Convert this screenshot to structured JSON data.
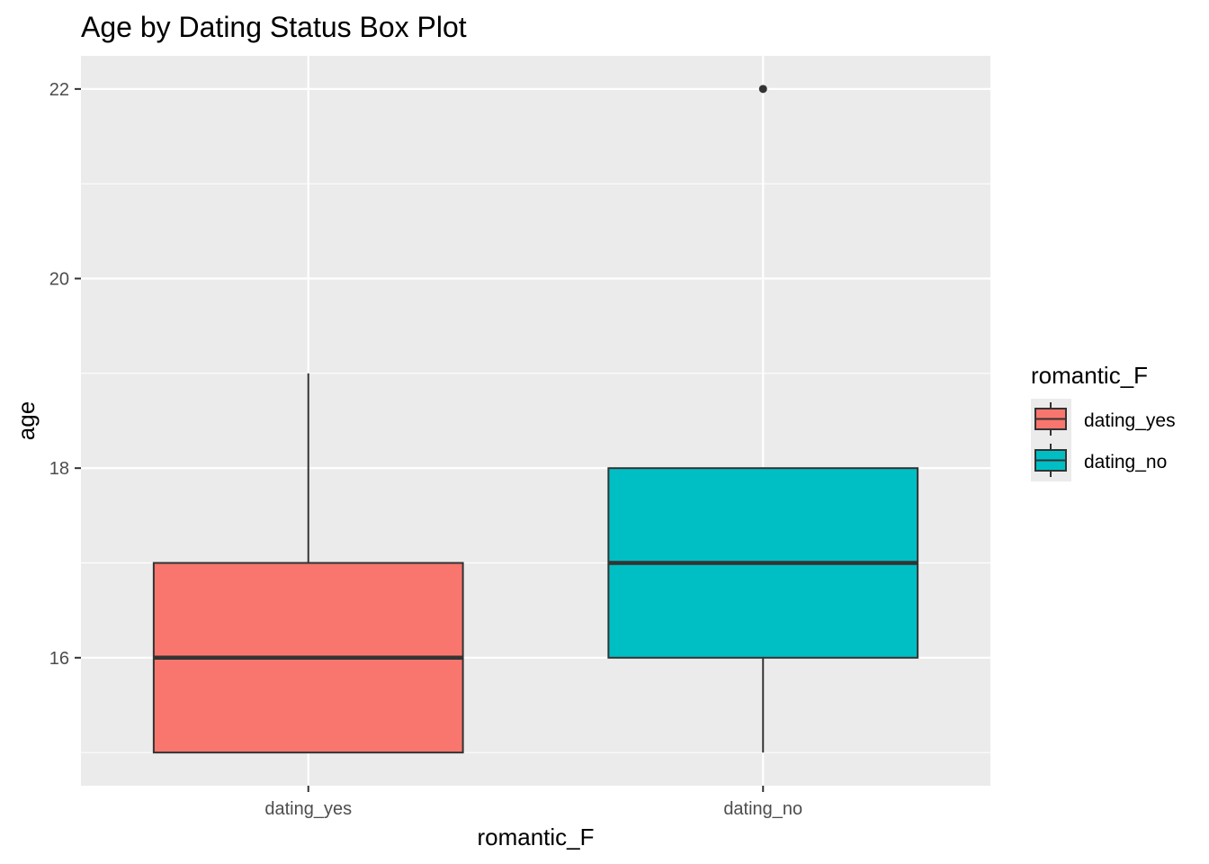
{
  "chart_data": {
    "type": "box",
    "title": "Age by Dating Status Box Plot",
    "xlabel": "romantic_F",
    "ylabel": "age",
    "categories": [
      "dating_yes",
      "dating_no"
    ],
    "ylim": [
      14.65,
      22.35
    ],
    "y_ticks": [
      16,
      18,
      20,
      22
    ],
    "y_tick_labels": [
      "16",
      "18",
      "20",
      "22"
    ],
    "grid": true,
    "legend": {
      "title": "romantic_F",
      "position": "right",
      "entries": [
        {
          "label": "dating_yes",
          "color": "#F8766D"
        },
        {
          "label": "dating_no",
          "color": "#00BFC4"
        }
      ]
    },
    "series": [
      {
        "category": "dating_yes",
        "color": "#F8766D",
        "min": 15,
        "q1": 15,
        "median": 16,
        "q3": 17,
        "max": 19,
        "outliers": []
      },
      {
        "category": "dating_no",
        "color": "#00BFC4",
        "min": 15,
        "q1": 16,
        "median": 17,
        "q3": 18,
        "max": 18,
        "outliers": [
          22
        ]
      }
    ]
  },
  "colors": {
    "panel_background": "#EBEBEB",
    "grid_major": "#FFFFFF",
    "box_outline": "#333333",
    "tick_color": "#333333"
  }
}
